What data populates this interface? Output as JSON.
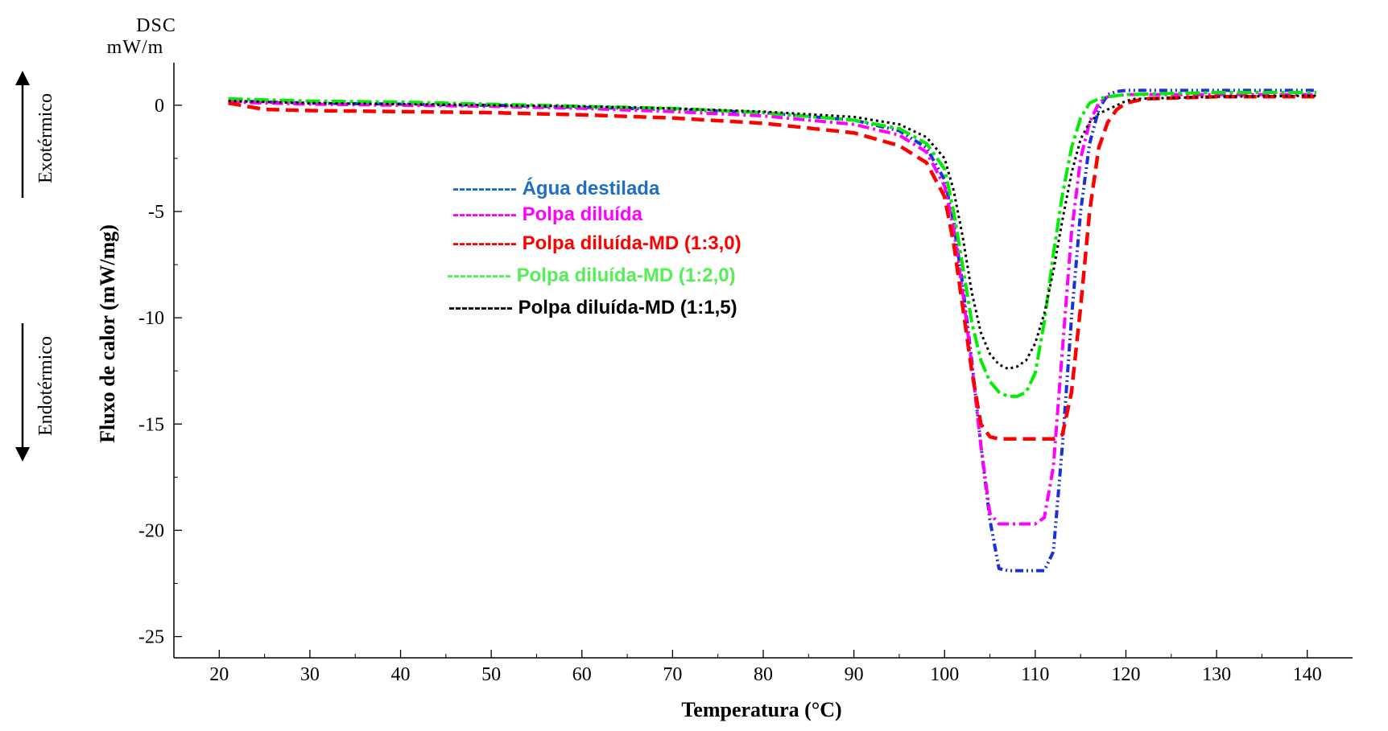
{
  "chart_data": {
    "type": "line",
    "title": "",
    "xlabel": "Temperatura (°C)",
    "ylabel": "Fluxo de calor (mW/mg)",
    "corner_label_line1": "DSC",
    "corner_label_line2": "mW/m",
    "direction_up_label": "Exotérmico",
    "direction_down_label": "Endotérmico",
    "xlim": [
      15,
      145
    ],
    "ylim": [
      -26,
      2
    ],
    "x_ticks": [
      20,
      30,
      40,
      50,
      60,
      70,
      80,
      90,
      100,
      110,
      120,
      130,
      140
    ],
    "y_ticks": [
      0,
      -5,
      -10,
      -15,
      -20,
      -25
    ],
    "x_tick_labels": [
      "20",
      "30",
      "40",
      "50",
      "60",
      "70",
      "80",
      "90",
      "100",
      "110",
      "120",
      "130",
      "140"
    ],
    "y_tick_labels": [
      "0",
      "-5",
      "-10",
      "-15",
      "-20",
      "-25"
    ],
    "grid": false,
    "legend_position": "center-left",
    "series": [
      {
        "name": "Água destilada",
        "legend_text": "---------- Água destilada",
        "color": "#1a2fe0",
        "legend_color": "#1f6fc0",
        "style": "dash-dot-dot",
        "x": [
          21,
          30,
          40,
          50,
          60,
          70,
          80,
          90,
          95,
          98,
          100,
          101,
          102,
          103,
          104,
          105,
          106,
          107,
          108,
          109,
          110,
          111,
          112,
          113,
          114,
          115,
          116,
          117,
          118,
          119,
          120,
          130,
          141
        ],
        "y": [
          0.2,
          0.1,
          0.05,
          0.0,
          -0.1,
          -0.2,
          -0.35,
          -0.7,
          -1.2,
          -2.0,
          -3.5,
          -5.5,
          -8.5,
          -12.0,
          -16.0,
          -19.5,
          -21.8,
          -21.9,
          -21.9,
          -21.9,
          -21.9,
          -21.9,
          -21.0,
          -16.0,
          -10.0,
          -5.0,
          -1.8,
          -0.2,
          0.5,
          0.65,
          0.7,
          0.7,
          0.7
        ]
      },
      {
        "name": "Polpa diluída",
        "legend_text": "---------- Polpa diluída",
        "color": "#ff00ff",
        "legend_color": "#ff00ff",
        "style": "dash-dot",
        "x": [
          21,
          30,
          40,
          50,
          60,
          70,
          80,
          90,
          95,
          98,
          100,
          101,
          102,
          103,
          104,
          105,
          106,
          107,
          108,
          109,
          110,
          111,
          112,
          113,
          114,
          115,
          116,
          117,
          118,
          119,
          120,
          130,
          141
        ],
        "y": [
          0.15,
          0.05,
          0.0,
          -0.05,
          -0.15,
          -0.3,
          -0.5,
          -0.9,
          -1.4,
          -2.2,
          -3.8,
          -5.8,
          -8.8,
          -12.2,
          -16.0,
          -19.2,
          -19.7,
          -19.7,
          -19.7,
          -19.7,
          -19.7,
          -19.4,
          -17.0,
          -11.5,
          -6.0,
          -2.5,
          -0.8,
          0.1,
          0.4,
          0.45,
          0.5,
          0.5,
          0.5
        ]
      },
      {
        "name": "Polpa diluída-MD (1:3,0)",
        "legend_text": "---------- Polpa diluída-MD (1:3,0)",
        "color": "#ff0000",
        "legend_color": "#ff0000",
        "style": "dash",
        "x": [
          21,
          25,
          30,
          40,
          50,
          60,
          70,
          80,
          90,
          95,
          98,
          100,
          101,
          102,
          103,
          104,
          105,
          106,
          108,
          110,
          112,
          113,
          114,
          115,
          116,
          117,
          118,
          119,
          120,
          121,
          122,
          130,
          141
        ],
        "y": [
          0.1,
          -0.2,
          -0.25,
          -0.3,
          -0.35,
          -0.45,
          -0.6,
          -0.85,
          -1.3,
          -1.9,
          -2.7,
          -4.3,
          -6.5,
          -9.5,
          -12.5,
          -15.0,
          -15.6,
          -15.7,
          -15.7,
          -15.7,
          -15.7,
          -15.5,
          -13.5,
          -9.5,
          -5.0,
          -2.0,
          -0.8,
          -0.2,
          0.1,
          0.2,
          0.3,
          0.4,
          0.4
        ]
      },
      {
        "name": "Polpa diluída-MD (1:2,0)",
        "legend_text": "---------- Polpa diluída-MD (1:2,0)",
        "color": "#00ee00",
        "legend_color": "#55ee55",
        "style": "dash-dot-long",
        "x": [
          21,
          30,
          40,
          50,
          60,
          70,
          80,
          90,
          95,
          98,
          100,
          101,
          102,
          103,
          104,
          105,
          106,
          107,
          108,
          109,
          110,
          111,
          112,
          113,
          114,
          115,
          116,
          117,
          118,
          120,
          130,
          141
        ],
        "y": [
          0.3,
          0.2,
          0.15,
          0.05,
          -0.05,
          -0.15,
          -0.35,
          -0.7,
          -1.1,
          -1.8,
          -3.0,
          -5.0,
          -7.6,
          -10.2,
          -12.0,
          -13.0,
          -13.5,
          -13.7,
          -13.7,
          -13.5,
          -12.6,
          -10.2,
          -7.0,
          -4.2,
          -2.0,
          -0.6,
          0.1,
          0.3,
          0.4,
          0.5,
          0.6,
          0.6
        ]
      },
      {
        "name": "Polpa diluída-MD (1:1,5)",
        "legend_text": "---------- Polpa diluída-MD (1:1,5)",
        "color": "#000000",
        "legend_color": "#000000",
        "style": "dot",
        "x": [
          21,
          30,
          40,
          50,
          60,
          70,
          80,
          90,
          95,
          98,
          100,
          101,
          102,
          103,
          104,
          105,
          106,
          107,
          108,
          109,
          110,
          111,
          112,
          113,
          114,
          115,
          116,
          117,
          118,
          119,
          120,
          121,
          130,
          141
        ],
        "y": [
          0.2,
          0.1,
          0.05,
          0.0,
          -0.05,
          -0.15,
          -0.3,
          -0.55,
          -0.9,
          -1.5,
          -2.5,
          -4.0,
          -6.2,
          -8.8,
          -10.7,
          -11.7,
          -12.2,
          -12.4,
          -12.3,
          -12.0,
          -11.2,
          -9.8,
          -7.8,
          -5.4,
          -3.2,
          -1.6,
          -0.8,
          -0.4,
          -0.2,
          0.0,
          0.2,
          0.3,
          0.4,
          0.45
        ]
      }
    ]
  }
}
